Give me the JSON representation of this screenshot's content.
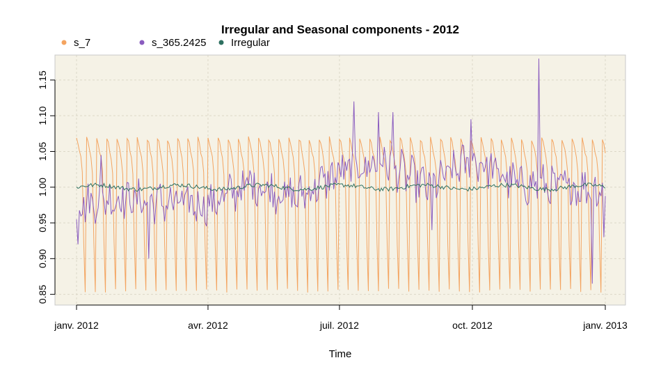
{
  "chart_data": {
    "type": "line",
    "title": "Irregular and Seasonal components - 2012",
    "xlabel": "Time",
    "ylabel": "",
    "x_range": [
      "2012-01-01",
      "2012-12-31"
    ],
    "ylim": [
      0.835,
      1.185
    ],
    "y_ticks": [
      0.85,
      0.9,
      0.95,
      1.0,
      1.05,
      1.1,
      1.15
    ],
    "y_tick_labels": [
      "0.85",
      "0.90",
      "0.95",
      "1.00",
      "1.05",
      "1.10",
      "1.15"
    ],
    "x_ticks": [
      {
        "date": "2012-01-01",
        "label": "janv. 2012"
      },
      {
        "date": "2012-04-01",
        "label": "avr. 2012"
      },
      {
        "date": "2012-07-01",
        "label": "juil. 2012"
      },
      {
        "date": "2012-10-01",
        "label": "oct. 2012"
      },
      {
        "date": "2013-01-01",
        "label": "janv. 2013"
      }
    ],
    "grid": true,
    "legend_position": "top-left",
    "background_color": "#f5f2e6",
    "series": [
      {
        "name": "s_7",
        "color": "#f4a460",
        "weekly_pattern": [
          1.068,
          1.062,
          1.05,
          1.04,
          1.02,
          0.92,
          0.855
        ]
      },
      {
        "name": "s_365.2425",
        "color": "#8a5cbf",
        "monthly_level": [
          {
            "month": "2012-01",
            "value": 0.975
          },
          {
            "month": "2012-02",
            "value": 0.985
          },
          {
            "month": "2012-03",
            "value": 0.978
          },
          {
            "month": "2012-04",
            "value": 0.975
          },
          {
            "month": "2012-05",
            "value": 1.005
          },
          {
            "month": "2012-06",
            "value": 0.985
          },
          {
            "month": "2012-07",
            "value": 1.02
          },
          {
            "month": "2012-08",
            "value": 1.035
          },
          {
            "month": "2012-09",
            "value": 1.0
          },
          {
            "month": "2012-10",
            "value": 1.04
          },
          {
            "month": "2012-11",
            "value": 1.005
          },
          {
            "month": "2012-12",
            "value": 1.0
          }
        ],
        "notable_points": [
          {
            "date": "2012-01-01",
            "value": 0.955
          },
          {
            "date": "2012-01-02",
            "value": 0.92
          },
          {
            "date": "2012-01-18",
            "value": 1.045
          },
          {
            "date": "2012-02-20",
            "value": 0.9
          },
          {
            "date": "2012-07-11",
            "value": 1.12
          },
          {
            "date": "2012-07-28",
            "value": 1.105
          },
          {
            "date": "2012-08-07",
            "value": 1.105
          },
          {
            "date": "2012-09-03",
            "value": 0.94
          },
          {
            "date": "2012-09-30",
            "value": 1.095
          },
          {
            "date": "2012-11-16",
            "value": 1.18
          },
          {
            "date": "2012-12-23",
            "value": 0.865
          },
          {
            "date": "2012-12-31",
            "value": 0.93
          }
        ]
      },
      {
        "name": "Irregular",
        "color": "#2e7060",
        "level": 1.0,
        "amplitude": 0.006
      }
    ]
  }
}
